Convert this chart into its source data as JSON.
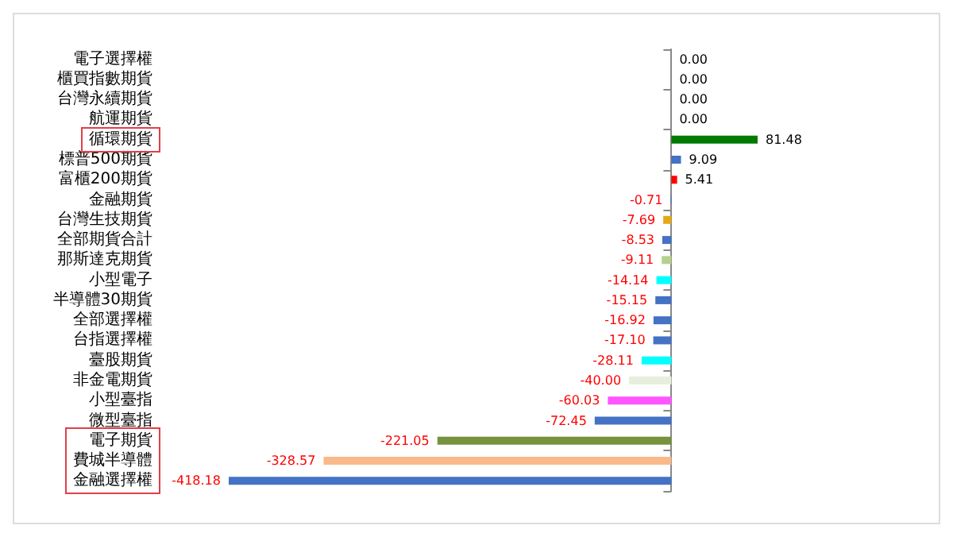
{
  "chart_data": {
    "type": "bar",
    "orientation": "horizontal",
    "categories": [
      "電子選擇權",
      "櫃買指數期貨",
      "台灣永續期貨",
      "航運期貨",
      "循環期貨",
      "標普500期貨",
      "富櫃200期貨",
      "金融期貨",
      "台灣生技期貨",
      "全部期貨合計",
      "那斯達克期貨",
      "小型電子",
      "半導體30期貨",
      "全部選擇權",
      "台指選擇權",
      "臺股期貨",
      "非金電期貨",
      "小型臺指",
      "微型臺指",
      "電子期貨",
      "費城半導體",
      "金融選擇權"
    ],
    "values": [
      0,
      0,
      0,
      0,
      81.48,
      9.09,
      5.41,
      -0.71,
      -7.69,
      -8.53,
      -9.11,
      -14.14,
      -15.15,
      -16.92,
      -17.1,
      -28.11,
      -40.0,
      -60.03,
      -72.45,
      -221.05,
      -328.57,
      -418.18
    ],
    "value_labels": [
      "0.00",
      "0.00",
      "0.00",
      "0.00",
      "81.48",
      "9.09",
      "5.41",
      "-0.71",
      "-7.69",
      "-8.53",
      "-9.11",
      "-14.14",
      "-15.15",
      "-16.92",
      "-17.10",
      "-28.11",
      "-40.00",
      "-60.03",
      "-72.45",
      "-221.05",
      "-328.57",
      "-418.18"
    ],
    "colors": [
      "#4472c4",
      "#4472c4",
      "#4472c4",
      "#4472c4",
      "#007a00",
      "#4472c4",
      "#ff0000",
      "#4472c4",
      "#e6a817",
      "#4472c4",
      "#b5cf8d",
      "#00ffff",
      "#4472c4",
      "#4472c4",
      "#4472c4",
      "#00ffff",
      "#e8eedc",
      "#ff55ff",
      "#4472c4",
      "#76923c",
      "#f9b98a",
      "#4472c4"
    ],
    "grid": false
  }
}
